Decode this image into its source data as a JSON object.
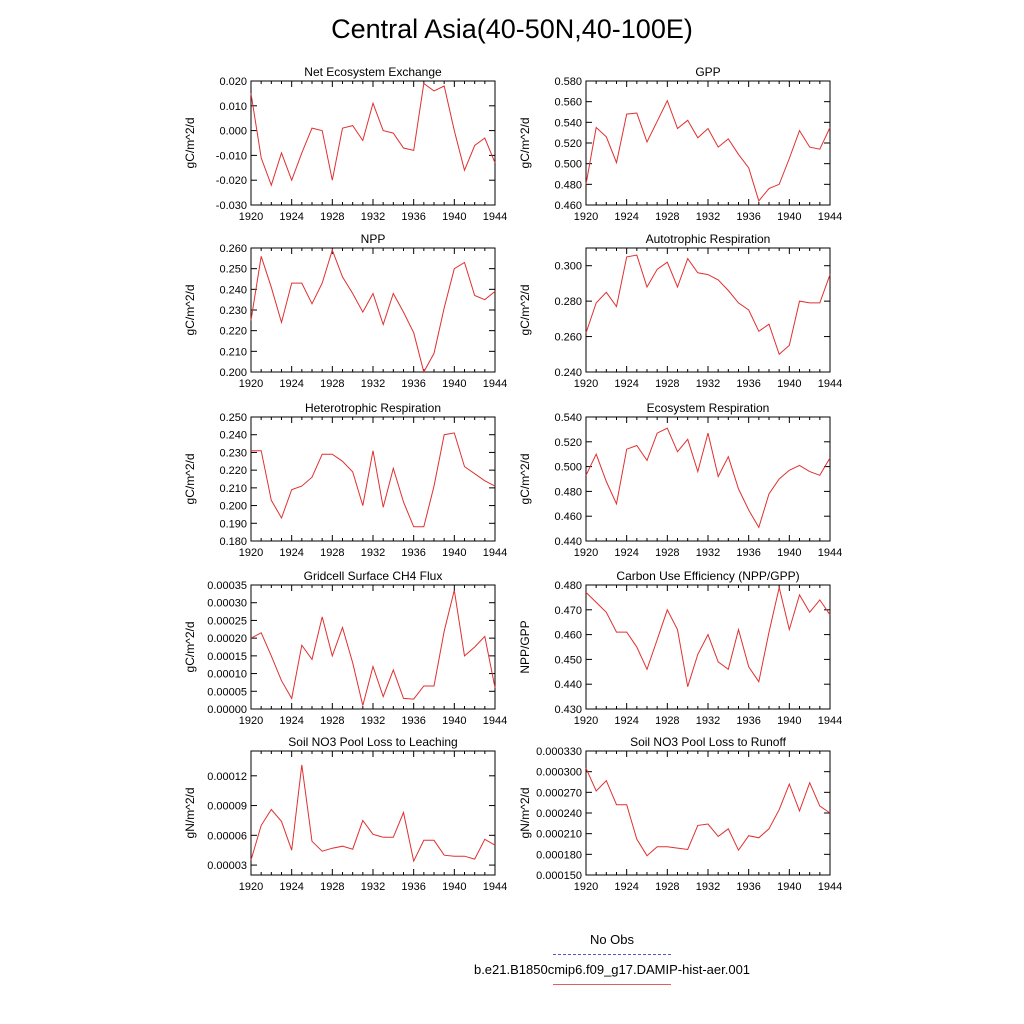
{
  "title": "Central Asia(40-50N,40-100E)",
  "legend": {
    "obs_label": "No Obs",
    "obs_color": "#5555cc",
    "model_label": "b.e21.B1850cmip6.f09_g17.DAMIP-hist-aer.001",
    "model_color": "#e03030"
  },
  "chart_data": [
    {
      "type": "line",
      "title": "Net Ecosystem Exchange",
      "ylabel": "gC/m^2/d",
      "xlim": [
        1920,
        1944
      ],
      "ylim": [
        -0.03,
        0.02
      ],
      "xticks": [
        "1920",
        "1924",
        "1928",
        "1932",
        "1936",
        "1940",
        "1944"
      ],
      "yticks": [
        "-0.030",
        "-0.020",
        "-0.010",
        "0.000",
        "0.010",
        "0.020"
      ],
      "x": [
        1920,
        1921,
        1922,
        1923,
        1924,
        1925,
        1926,
        1927,
        1928,
        1929,
        1930,
        1931,
        1932,
        1933,
        1934,
        1935,
        1936,
        1937,
        1938,
        1939,
        1940,
        1941,
        1942,
        1943,
        1944
      ],
      "values": [
        0.015,
        -0.011,
        -0.022,
        -0.009,
        -0.02,
        -0.009,
        0.001,
        0.0,
        -0.02,
        0.001,
        0.002,
        -0.004,
        0.011,
        0.0,
        -0.001,
        -0.007,
        -0.008,
        0.019,
        0.016,
        0.018,
        0.0,
        -0.016,
        -0.006,
        -0.003,
        -0.013
      ]
    },
    {
      "type": "line",
      "title": "GPP",
      "ylabel": "gC/m^2/d",
      "xlim": [
        1920,
        1944
      ],
      "ylim": [
        0.46,
        0.58
      ],
      "xticks": [
        "1920",
        "1924",
        "1928",
        "1932",
        "1936",
        "1940",
        "1944"
      ],
      "yticks": [
        "0.460",
        "0.480",
        "0.500",
        "0.520",
        "0.540",
        "0.560",
        "0.580"
      ],
      "x": [
        1920,
        1921,
        1922,
        1923,
        1924,
        1925,
        1926,
        1927,
        1928,
        1929,
        1930,
        1931,
        1932,
        1933,
        1934,
        1935,
        1936,
        1937,
        1938,
        1939,
        1940,
        1941,
        1942,
        1943,
        1944
      ],
      "values": [
        0.48,
        0.535,
        0.526,
        0.501,
        0.548,
        0.549,
        0.521,
        0.541,
        0.561,
        0.534,
        0.542,
        0.525,
        0.534,
        0.516,
        0.524,
        0.509,
        0.496,
        0.464,
        0.476,
        0.48,
        0.505,
        0.532,
        0.516,
        0.514,
        0.535
      ]
    },
    {
      "type": "line",
      "title": "NPP",
      "ylabel": "gC/m^2/d",
      "xlim": [
        1920,
        1944
      ],
      "ylim": [
        0.2,
        0.26
      ],
      "xticks": [
        "1920",
        "1924",
        "1928",
        "1932",
        "1936",
        "1940",
        "1944"
      ],
      "yticks": [
        "0.200",
        "0.210",
        "0.220",
        "0.230",
        "0.240",
        "0.250",
        "0.260"
      ],
      "x": [
        1920,
        1921,
        1922,
        1923,
        1924,
        1925,
        1926,
        1927,
        1928,
        1929,
        1930,
        1931,
        1932,
        1933,
        1934,
        1935,
        1936,
        1937,
        1938,
        1939,
        1940,
        1941,
        1942,
        1943,
        1944
      ],
      "values": [
        0.225,
        0.256,
        0.241,
        0.224,
        0.243,
        0.243,
        0.233,
        0.243,
        0.259,
        0.246,
        0.238,
        0.229,
        0.238,
        0.223,
        0.238,
        0.229,
        0.219,
        0.2,
        0.209,
        0.231,
        0.25,
        0.253,
        0.237,
        0.235,
        0.239
      ]
    },
    {
      "type": "line",
      "title": "Autotrophic Respiration",
      "ylabel": "gC/m^2/d",
      "xlim": [
        1920,
        1944
      ],
      "ylim": [
        0.24,
        0.31
      ],
      "xticks": [
        "1920",
        "1924",
        "1928",
        "1932",
        "1936",
        "1940",
        "1944"
      ],
      "yticks": [
        "0.240",
        "0.260",
        "0.280",
        "0.300"
      ],
      "x": [
        1920,
        1921,
        1922,
        1923,
        1924,
        1925,
        1926,
        1927,
        1928,
        1929,
        1930,
        1931,
        1932,
        1933,
        1934,
        1935,
        1936,
        1937,
        1938,
        1939,
        1940,
        1941,
        1942,
        1943,
        1944
      ],
      "values": [
        0.262,
        0.279,
        0.285,
        0.277,
        0.305,
        0.306,
        0.288,
        0.298,
        0.302,
        0.288,
        0.304,
        0.296,
        0.295,
        0.292,
        0.286,
        0.279,
        0.275,
        0.263,
        0.267,
        0.25,
        0.255,
        0.28,
        0.279,
        0.279,
        0.295
      ]
    },
    {
      "type": "line",
      "title": "Heterotrophic Respiration",
      "ylabel": "gC/m^2/d",
      "xlim": [
        1920,
        1944
      ],
      "ylim": [
        0.18,
        0.25
      ],
      "xticks": [
        "1920",
        "1924",
        "1928",
        "1932",
        "1936",
        "1940",
        "1944"
      ],
      "yticks": [
        "0.180",
        "0.190",
        "0.200",
        "0.210",
        "0.220",
        "0.230",
        "0.240",
        "0.250"
      ],
      "x": [
        1920,
        1921,
        1922,
        1923,
        1924,
        1925,
        1926,
        1927,
        1928,
        1929,
        1930,
        1931,
        1932,
        1933,
        1934,
        1935,
        1936,
        1937,
        1938,
        1939,
        1940,
        1941,
        1942,
        1943,
        1944
      ],
      "values": [
        0.231,
        0.231,
        0.203,
        0.193,
        0.209,
        0.211,
        0.216,
        0.229,
        0.229,
        0.225,
        0.219,
        0.2,
        0.231,
        0.199,
        0.221,
        0.202,
        0.188,
        0.188,
        0.211,
        0.24,
        0.241,
        0.222,
        0.218,
        0.214,
        0.211
      ]
    },
    {
      "type": "line",
      "title": "Ecosystem Respiration",
      "ylabel": "gC/m^2/d",
      "xlim": [
        1920,
        1944
      ],
      "ylim": [
        0.44,
        0.54
      ],
      "xticks": [
        "1920",
        "1924",
        "1928",
        "1932",
        "1936",
        "1940",
        "1944"
      ],
      "yticks": [
        "0.440",
        "0.460",
        "0.480",
        "0.500",
        "0.520",
        "0.540"
      ],
      "x": [
        1920,
        1921,
        1922,
        1923,
        1924,
        1925,
        1926,
        1927,
        1928,
        1929,
        1930,
        1931,
        1932,
        1933,
        1934,
        1935,
        1936,
        1937,
        1938,
        1939,
        1940,
        1941,
        1942,
        1943,
        1944
      ],
      "values": [
        0.493,
        0.51,
        0.488,
        0.47,
        0.514,
        0.517,
        0.505,
        0.527,
        0.531,
        0.512,
        0.522,
        0.496,
        0.527,
        0.492,
        0.508,
        0.482,
        0.465,
        0.451,
        0.478,
        0.49,
        0.497,
        0.501,
        0.496,
        0.493,
        0.507
      ]
    },
    {
      "type": "line",
      "title": "Gridcell Surface CH4 Flux",
      "ylabel": "gC/m^2/d",
      "xlim": [
        1920,
        1944
      ],
      "ylim": [
        0.0,
        0.00035
      ],
      "xticks": [
        "1920",
        "1924",
        "1928",
        "1932",
        "1936",
        "1940",
        "1944"
      ],
      "yticks": [
        "0.00000",
        "0.00005",
        "0.00010",
        "0.00015",
        "0.00020",
        "0.00025",
        "0.00030",
        "0.00035"
      ],
      "x": [
        1920,
        1921,
        1922,
        1923,
        1924,
        1925,
        1926,
        1927,
        1928,
        1929,
        1930,
        1931,
        1932,
        1933,
        1934,
        1935,
        1936,
        1937,
        1938,
        1939,
        1940,
        1941,
        1942,
        1943,
        1944
      ],
      "values": [
        0.0002,
        0.000215,
        0.00015,
        8e-05,
        3e-05,
        0.00018,
        0.00014,
        0.00026,
        0.00015,
        0.00023,
        0.00013,
        1e-05,
        0.00012,
        3.5e-05,
        0.00011,
        3e-05,
        2.8e-05,
        6.5e-05,
        6.5e-05,
        0.00022,
        0.000335,
        0.00015,
        0.000175,
        0.000205,
        6e-05
      ]
    },
    {
      "type": "line",
      "title": "Carbon Use Efficiency (NPP/GPP)",
      "ylabel": "NPP/GPP",
      "xlim": [
        1920,
        1944
      ],
      "ylim": [
        0.43,
        0.48
      ],
      "xticks": [
        "1920",
        "1924",
        "1928",
        "1932",
        "1936",
        "1940",
        "1944"
      ],
      "yticks": [
        "0.430",
        "0.440",
        "0.450",
        "0.460",
        "0.470",
        "0.480"
      ],
      "x": [
        1920,
        1921,
        1922,
        1923,
        1924,
        1925,
        1926,
        1927,
        1928,
        1929,
        1930,
        1931,
        1932,
        1933,
        1934,
        1935,
        1936,
        1937,
        1938,
        1939,
        1940,
        1941,
        1942,
        1943,
        1944
      ],
      "values": [
        0.477,
        0.473,
        0.469,
        0.461,
        0.461,
        0.455,
        0.446,
        0.458,
        0.47,
        0.462,
        0.439,
        0.452,
        0.46,
        0.449,
        0.446,
        0.462,
        0.447,
        0.441,
        0.461,
        0.479,
        0.462,
        0.476,
        0.469,
        0.474,
        0.468
      ]
    },
    {
      "type": "line",
      "title": "Soil NO3 Pool Loss to Leaching",
      "ylabel": "gN/m^2/d",
      "xlim": [
        1920,
        1944
      ],
      "ylim": [
        2e-05,
        0.000145
      ],
      "xticks": [
        "1920",
        "1924",
        "1928",
        "1932",
        "1936",
        "1940",
        "1944"
      ],
      "yticks": [
        "0.00003",
        "0.00006",
        "0.00009",
        "0.00012"
      ],
      "x": [
        1920,
        1921,
        1922,
        1923,
        1924,
        1925,
        1926,
        1927,
        1928,
        1929,
        1930,
        1931,
        1932,
        1933,
        1934,
        1935,
        1936,
        1937,
        1938,
        1939,
        1940,
        1941,
        1942,
        1943,
        1944
      ],
      "values": [
        3.5e-05,
        7e-05,
        8.6e-05,
        7.4e-05,
        4.5e-05,
        0.000131,
        5.4e-05,
        4.4e-05,
        4.7e-05,
        4.9e-05,
        4.6e-05,
        7.5e-05,
        6.1e-05,
        5.8e-05,
        5.8e-05,
        8.3e-05,
        3.4e-05,
        5.5e-05,
        5.5e-05,
        4e-05,
        3.9e-05,
        3.9e-05,
        3.6e-05,
        5.6e-05,
        5e-05
      ]
    },
    {
      "type": "line",
      "title": "Soil NO3 Pool Loss to Runoff",
      "ylabel": "gN/m^2/d",
      "xlim": [
        1920,
        1944
      ],
      "ylim": [
        0.00015,
        0.00033
      ],
      "xticks": [
        "1920",
        "1924",
        "1928",
        "1932",
        "1936",
        "1940",
        "1944"
      ],
      "yticks": [
        "0.000150",
        "0.000180",
        "0.000210",
        "0.000240",
        "0.000270",
        "0.000300",
        "0.000330"
      ],
      "x": [
        1920,
        1921,
        1922,
        1923,
        1924,
        1925,
        1926,
        1927,
        1928,
        1929,
        1930,
        1931,
        1932,
        1933,
        1934,
        1935,
        1936,
        1937,
        1938,
        1939,
        1940,
        1941,
        1942,
        1943,
        1944
      ],
      "values": [
        0.000305,
        0.000272,
        0.000287,
        0.000252,
        0.000252,
        0.000202,
        0.000178,
        0.000191,
        0.000191,
        0.000189,
        0.000187,
        0.000222,
        0.000224,
        0.000206,
        0.000217,
        0.000186,
        0.000207,
        0.000204,
        0.000217,
        0.000245,
        0.000282,
        0.000243,
        0.000284,
        0.00025,
        0.00024
      ]
    }
  ]
}
